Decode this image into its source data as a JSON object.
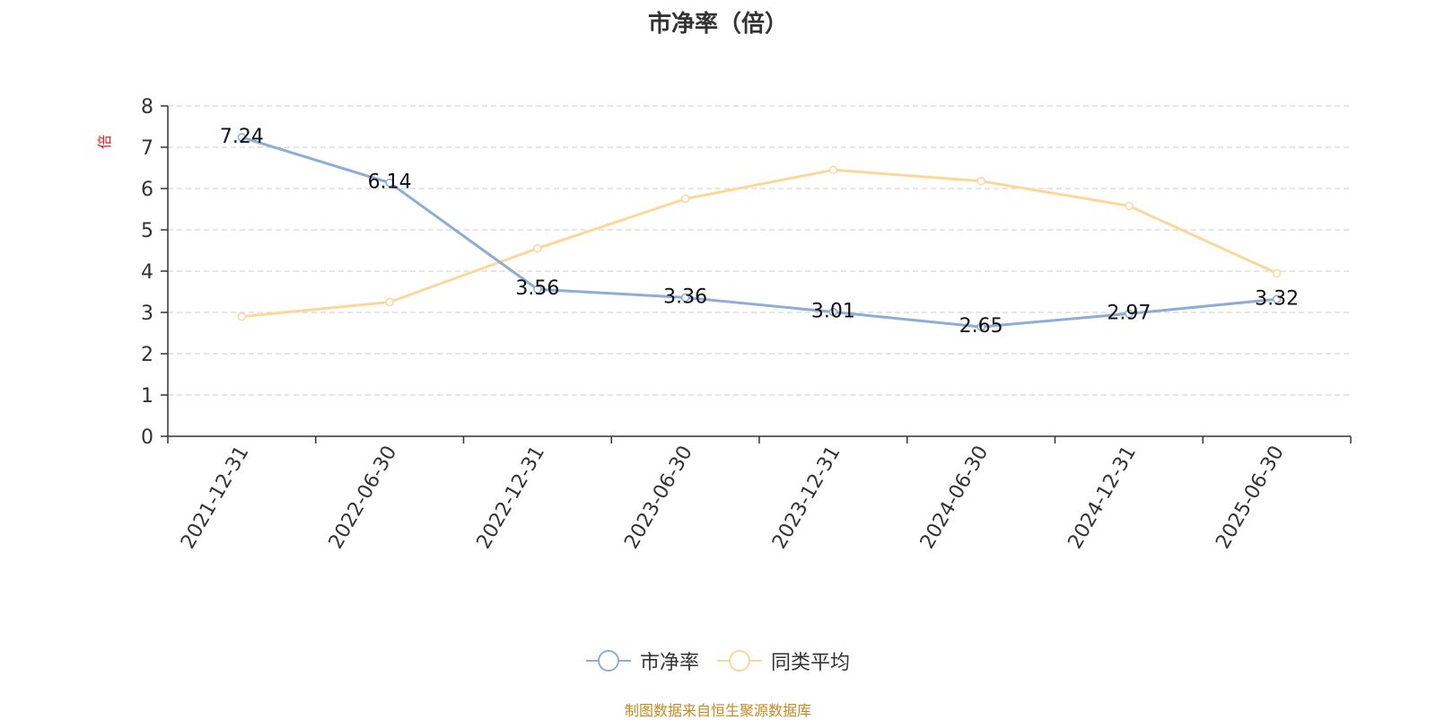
{
  "chart_data": {
    "type": "line",
    "title": "市净率（倍）",
    "ylabel": "倍",
    "xlabel": "",
    "ylim": [
      0,
      8
    ],
    "yticks": [
      0,
      1,
      2,
      3,
      4,
      5,
      6,
      7,
      8
    ],
    "grid": true,
    "legend_position": "bottom",
    "categories": [
      "2021-12-31",
      "2022-06-30",
      "2022-12-31",
      "2023-06-30",
      "2023-12-31",
      "2024-06-30",
      "2024-12-31",
      "2025-06-30"
    ],
    "series": [
      {
        "name": "市净率",
        "color": "#8eacd6",
        "values": [
          7.24,
          6.14,
          3.56,
          3.36,
          3.01,
          2.65,
          2.97,
          3.32
        ],
        "data_labels": [
          "7.24",
          "6.14",
          "3.56",
          "3.36",
          "3.01",
          "2.65",
          "2.97",
          "3.32"
        ]
      },
      {
        "name": "同类平均",
        "color": "#fbd89a",
        "values": [
          2.9,
          3.25,
          4.55,
          5.75,
          6.45,
          6.18,
          5.58,
          3.95
        ]
      }
    ]
  },
  "source_note": "制图数据来自恒生聚源数据库"
}
